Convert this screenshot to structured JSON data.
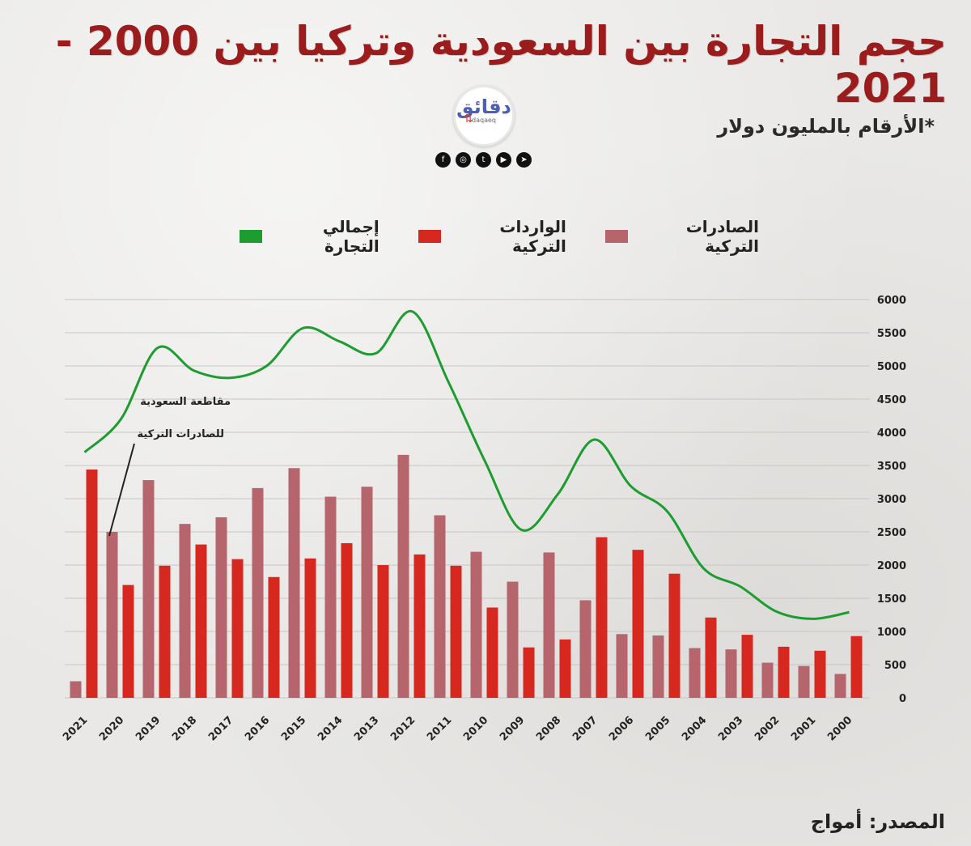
{
  "header": {
    "title": "حجم التجارة بين السعودية وتركيا بين 2000 - 2021",
    "units_note": "*الأرقام بالمليون دولار"
  },
  "logo": {
    "text": "دقائق",
    "sub": "daqaeq"
  },
  "social_icons": [
    "facebook-icon",
    "instagram-icon",
    "twitter-icon",
    "youtube-icon",
    "telegram-icon"
  ],
  "legend": {
    "total_label": "إجمالي التجارة",
    "imports_label": "الواردات التركية",
    "exports_label": "الصادرات التركية"
  },
  "footer": {
    "source": "المصدر: أمواج"
  },
  "colors": {
    "title": "#9b1c1c",
    "exports": "#b5656b",
    "imports": "#d7281f",
    "total": "#1d9c30",
    "grid": "#c8c6c3"
  },
  "chart_data": {
    "type": "bar",
    "categories": [
      "2021",
      "2020",
      "2019",
      "2018",
      "2017",
      "2016",
      "2015",
      "2014",
      "2013",
      "2012",
      "2011",
      "2010",
      "2009",
      "2008",
      "2007",
      "2006",
      "2005",
      "2004",
      "2003",
      "2002",
      "2001",
      "2000"
    ],
    "ylim": [
      0,
      6000
    ],
    "yticks": [
      0,
      500,
      1000,
      1500,
      2000,
      2500,
      3000,
      3500,
      4000,
      4500,
      5000,
      5500,
      6000
    ],
    "grid": true,
    "legend_position": "top",
    "series": [
      {
        "name": "الصادرات التركية",
        "kind": "bar",
        "values": [
          250,
          2500,
          3280,
          2620,
          2720,
          3160,
          3460,
          3030,
          3180,
          3660,
          2750,
          2200,
          1750,
          2190,
          1470,
          960,
          940,
          750,
          730,
          530,
          480,
          360
        ]
      },
      {
        "name": "الواردات التركية",
        "kind": "bar",
        "values": [
          3440,
          1700,
          1990,
          2310,
          2090,
          1820,
          2100,
          2330,
          2000,
          2160,
          1990,
          1360,
          760,
          880,
          2420,
          2230,
          1870,
          1210,
          950,
          770,
          710,
          930
        ]
      },
      {
        "name": "إجمالي التجارة",
        "kind": "line",
        "values": [
          3700,
          4200,
          5270,
          4930,
          4820,
          5000,
          5570,
          5370,
          5190,
          5820,
          4750,
          3560,
          2530,
          3070,
          3890,
          3190,
          2810,
          1950,
          1680,
          1300,
          1190,
          1290
        ]
      }
    ],
    "annotations": [
      "مقاطعة السعودية",
      "للصادرات التركية"
    ]
  }
}
